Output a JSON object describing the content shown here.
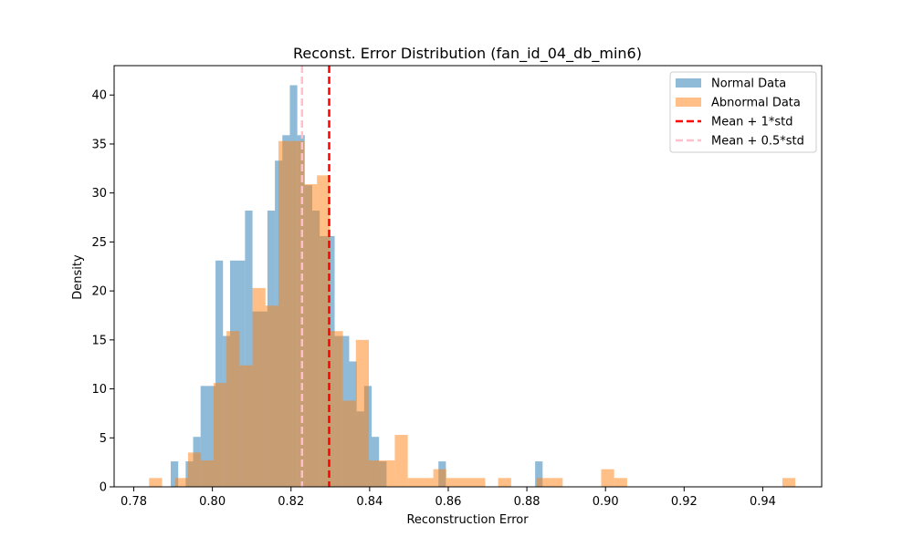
{
  "chart_data": {
    "type": "histogram",
    "title": "Reconst. Error Distribution (fan_id_04_db_min6)",
    "xlabel": "Reconstruction Error",
    "ylabel": "Density",
    "xlim": [
      0.775,
      0.955
    ],
    "ylim": [
      0,
      43
    ],
    "xticks": [
      0.78,
      0.8,
      0.82,
      0.84,
      0.86,
      0.88,
      0.9,
      0.92,
      0.94
    ],
    "xtick_labels": [
      "0.78",
      "0.80",
      "0.82",
      "0.84",
      "0.86",
      "0.88",
      "0.90",
      "0.92",
      "0.94"
    ],
    "yticks": [
      0,
      5,
      10,
      15,
      20,
      25,
      30,
      35,
      40
    ],
    "ytick_labels": [
      "0",
      "5",
      "10",
      "15",
      "20",
      "25",
      "30",
      "35",
      "40"
    ],
    "grid": false,
    "legend_position": "top-right",
    "series": [
      {
        "name": "Normal Data",
        "color": "#1f77b4",
        "alpha": 0.5,
        "bins": [
          [
            0.7894,
            0.7913,
            2.6
          ],
          [
            0.7932,
            0.7951,
            2.6
          ],
          [
            0.7951,
            0.797,
            5.1
          ],
          [
            0.797,
            0.8008,
            10.3
          ],
          [
            0.8008,
            0.8027,
            23.1
          ],
          [
            0.8027,
            0.8045,
            15.4
          ],
          [
            0.8045,
            0.8083,
            23.1
          ],
          [
            0.8083,
            0.8102,
            28.2
          ],
          [
            0.8102,
            0.814,
            17.9
          ],
          [
            0.814,
            0.8159,
            28.2
          ],
          [
            0.8159,
            0.8178,
            33.3
          ],
          [
            0.8178,
            0.8197,
            35.9
          ],
          [
            0.8197,
            0.8216,
            41.0
          ],
          [
            0.8216,
            0.8235,
            35.9
          ],
          [
            0.8235,
            0.8254,
            30.8
          ],
          [
            0.8254,
            0.8273,
            28.2
          ],
          [
            0.8273,
            0.8292,
            25.6
          ],
          [
            0.8292,
            0.8311,
            25.6
          ],
          [
            0.8311,
            0.833,
            15.4
          ],
          [
            0.833,
            0.8348,
            15.4
          ],
          [
            0.8348,
            0.8367,
            12.8
          ],
          [
            0.8367,
            0.8386,
            7.7
          ],
          [
            0.8386,
            0.8405,
            10.3
          ],
          [
            0.8405,
            0.8424,
            5.1
          ],
          [
            0.8424,
            0.8443,
            2.6
          ],
          [
            0.8575,
            0.8594,
            2.6
          ],
          [
            0.8821,
            0.884,
            2.6
          ]
        ]
      },
      {
        "name": "Abnormal Data",
        "color": "#ff7f0e",
        "alpha": 0.5,
        "bins": [
          [
            0.7839,
            0.7872,
            0.9
          ],
          [
            0.7905,
            0.7938,
            0.9
          ],
          [
            0.7938,
            0.7971,
            3.5
          ],
          [
            0.7971,
            0.8003,
            2.7
          ],
          [
            0.8003,
            0.8036,
            10.6
          ],
          [
            0.8036,
            0.8069,
            15.9
          ],
          [
            0.8069,
            0.8102,
            12.4
          ],
          [
            0.8102,
            0.8135,
            20.3
          ],
          [
            0.8135,
            0.8168,
            18.5
          ],
          [
            0.8168,
            0.8201,
            35.3
          ],
          [
            0.8201,
            0.8233,
            35.3
          ],
          [
            0.8233,
            0.8266,
            30.9
          ],
          [
            0.8266,
            0.8299,
            31.8
          ],
          [
            0.8299,
            0.8332,
            15.9
          ],
          [
            0.8332,
            0.8365,
            8.8
          ],
          [
            0.8365,
            0.8398,
            15.0
          ],
          [
            0.8398,
            0.8431,
            2.7
          ],
          [
            0.8431,
            0.8464,
            2.7
          ],
          [
            0.8464,
            0.8497,
            5.3
          ],
          [
            0.8497,
            0.8562,
            0.9
          ],
          [
            0.8562,
            0.8595,
            1.8
          ],
          [
            0.8595,
            0.8661,
            0.9
          ],
          [
            0.8661,
            0.8694,
            0.9
          ],
          [
            0.8727,
            0.876,
            0.9
          ],
          [
            0.8825,
            0.8858,
            0.9
          ],
          [
            0.8858,
            0.8891,
            0.9
          ],
          [
            0.8989,
            0.9022,
            1.8
          ],
          [
            0.9022,
            0.9055,
            0.9
          ],
          [
            0.945,
            0.9483,
            0.9
          ]
        ]
      }
    ],
    "vlines": [
      {
        "name": "Mean + 1*std",
        "x": 0.8297,
        "color": "#ff0000",
        "style": "dashed"
      },
      {
        "name": "Mean + 0.5*std",
        "x": 0.8228,
        "color": "#ffc0cb",
        "style": "dashed"
      }
    ]
  }
}
